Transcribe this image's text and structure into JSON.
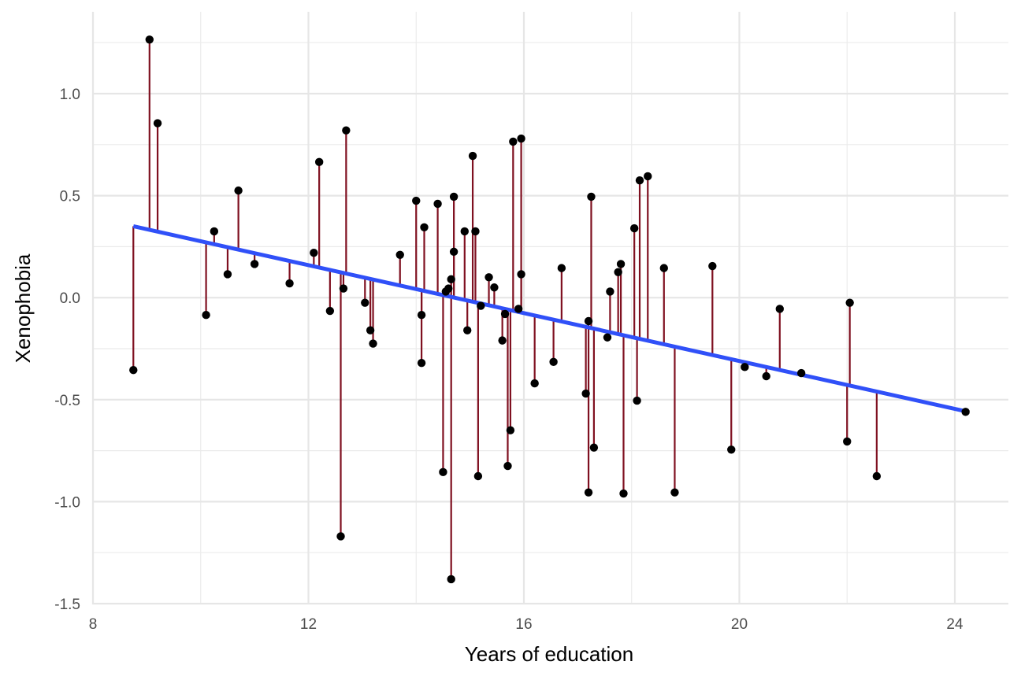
{
  "chart_data": {
    "type": "scatter",
    "xlabel": "Years of education",
    "ylabel": "Xenophobia",
    "xlim": [
      8,
      25
    ],
    "ylim": [
      -1.5,
      1.3
    ],
    "x_ticks": [
      8,
      12,
      16,
      20,
      24
    ],
    "x_tick_labels": [
      "8",
      "12",
      "16",
      "20",
      "24"
    ],
    "y_ticks": [
      -1.5,
      -1.0,
      -0.5,
      0.0,
      0.5,
      1.0
    ],
    "y_tick_labels": [
      "-1.5",
      "-1.0",
      "-0.5",
      "0.0",
      "0.5",
      "1.0"
    ],
    "grid": true,
    "point_color": "#000000",
    "residual_color": "#7f1020",
    "fit_line_color": "#3050f8",
    "fit_line": {
      "x": [
        8.75,
        24.25
      ],
      "y": [
        0.35,
        -0.56
      ]
    },
    "points": [
      {
        "x": 8.75,
        "y": -0.355
      },
      {
        "x": 9.05,
        "y": 1.265
      },
      {
        "x": 9.2,
        "y": 0.855
      },
      {
        "x": 10.1,
        "y": -0.085
      },
      {
        "x": 10.25,
        "y": 0.325
      },
      {
        "x": 10.5,
        "y": 0.115
      },
      {
        "x": 10.7,
        "y": 0.525
      },
      {
        "x": 11.0,
        "y": 0.165
      },
      {
        "x": 11.65,
        "y": 0.07
      },
      {
        "x": 12.1,
        "y": 0.22
      },
      {
        "x": 12.2,
        "y": 0.665
      },
      {
        "x": 12.4,
        "y": -0.065
      },
      {
        "x": 12.6,
        "y": -1.17
      },
      {
        "x": 12.65,
        "y": 0.045
      },
      {
        "x": 12.7,
        "y": 0.82
      },
      {
        "x": 13.05,
        "y": -0.025
      },
      {
        "x": 13.15,
        "y": -0.16
      },
      {
        "x": 13.2,
        "y": -0.225
      },
      {
        "x": 13.7,
        "y": 0.21
      },
      {
        "x": 14.0,
        "y": 0.475
      },
      {
        "x": 14.1,
        "y": -0.32
      },
      {
        "x": 14.1,
        "y": -0.085
      },
      {
        "x": 14.15,
        "y": 0.345
      },
      {
        "x": 14.4,
        "y": 0.46
      },
      {
        "x": 14.5,
        "y": -0.855
      },
      {
        "x": 14.55,
        "y": 0.03
      },
      {
        "x": 14.6,
        "y": 0.045
      },
      {
        "x": 14.65,
        "y": -1.38
      },
      {
        "x": 14.65,
        "y": 0.09
      },
      {
        "x": 14.7,
        "y": 0.225
      },
      {
        "x": 14.7,
        "y": 0.495
      },
      {
        "x": 14.9,
        "y": 0.325
      },
      {
        "x": 14.95,
        "y": -0.16
      },
      {
        "x": 15.05,
        "y": 0.695
      },
      {
        "x": 15.1,
        "y": 0.325
      },
      {
        "x": 15.15,
        "y": -0.875
      },
      {
        "x": 15.2,
        "y": -0.04
      },
      {
        "x": 15.35,
        "y": 0.1
      },
      {
        "x": 15.45,
        "y": 0.05
      },
      {
        "x": 15.6,
        "y": -0.21
      },
      {
        "x": 15.65,
        "y": -0.08
      },
      {
        "x": 15.7,
        "y": -0.825
      },
      {
        "x": 15.75,
        "y": -0.65
      },
      {
        "x": 15.8,
        "y": 0.765
      },
      {
        "x": 15.9,
        "y": -0.055
      },
      {
        "x": 15.95,
        "y": 0.115
      },
      {
        "x": 15.95,
        "y": 0.78
      },
      {
        "x": 16.2,
        "y": -0.42
      },
      {
        "x": 16.55,
        "y": -0.315
      },
      {
        "x": 16.7,
        "y": 0.145
      },
      {
        "x": 17.15,
        "y": -0.47
      },
      {
        "x": 17.2,
        "y": -0.955
      },
      {
        "x": 17.2,
        "y": -0.115
      },
      {
        "x": 17.25,
        "y": 0.495
      },
      {
        "x": 17.3,
        "y": -0.735
      },
      {
        "x": 17.55,
        "y": -0.195
      },
      {
        "x": 17.6,
        "y": 0.03
      },
      {
        "x": 17.75,
        "y": 0.125
      },
      {
        "x": 17.8,
        "y": 0.165
      },
      {
        "x": 17.85,
        "y": -0.96
      },
      {
        "x": 18.05,
        "y": 0.34
      },
      {
        "x": 18.1,
        "y": -0.505
      },
      {
        "x": 18.15,
        "y": 0.575
      },
      {
        "x": 18.3,
        "y": 0.595
      },
      {
        "x": 18.6,
        "y": 0.145
      },
      {
        "x": 18.8,
        "y": -0.955
      },
      {
        "x": 19.5,
        "y": 0.155
      },
      {
        "x": 19.85,
        "y": -0.745
      },
      {
        "x": 20.1,
        "y": -0.34
      },
      {
        "x": 20.5,
        "y": -0.385
      },
      {
        "x": 20.75,
        "y": -0.055
      },
      {
        "x": 21.15,
        "y": -0.37
      },
      {
        "x": 22.0,
        "y": -0.705
      },
      {
        "x": 22.05,
        "y": -0.025
      },
      {
        "x": 22.55,
        "y": -0.875
      },
      {
        "x": 24.2,
        "y": -0.56
      }
    ]
  }
}
